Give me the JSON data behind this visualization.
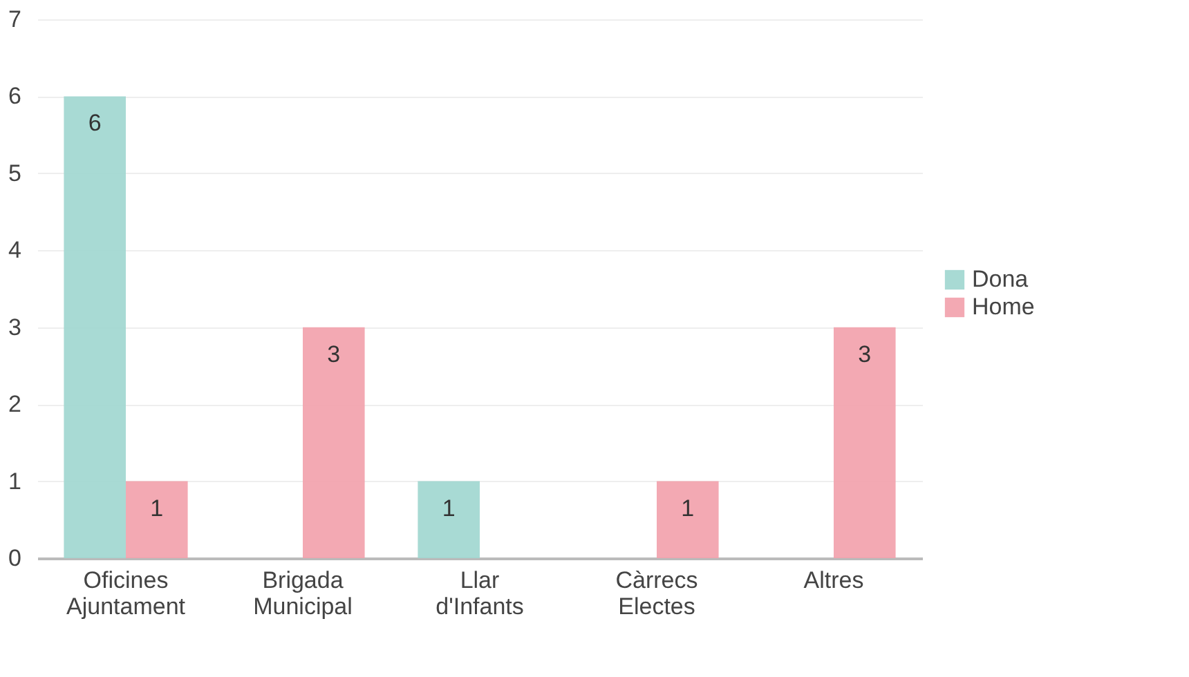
{
  "chart_data": {
    "type": "bar",
    "categories": [
      "Oficines Ajuntament",
      "Brigada Municipal",
      "Llar d'Infants",
      "Càrrecs Electes",
      "Altres"
    ],
    "series": [
      {
        "name": "Dona",
        "color": "#9fd6cf",
        "values": [
          6,
          0,
          1,
          0,
          0
        ],
        "value_labels": [
          "6",
          null,
          "1",
          null,
          null
        ]
      },
      {
        "name": "Home",
        "color": "#f2a0ab",
        "values": [
          1,
          3,
          0,
          1,
          3
        ],
        "value_labels": [
          "1",
          "3",
          null,
          "1",
          "3"
        ]
      }
    ],
    "ylim": [
      0,
      7
    ],
    "yticks": [
      0,
      1,
      2,
      3,
      4,
      5,
      6,
      7
    ],
    "grid": "y",
    "legend": "right"
  }
}
